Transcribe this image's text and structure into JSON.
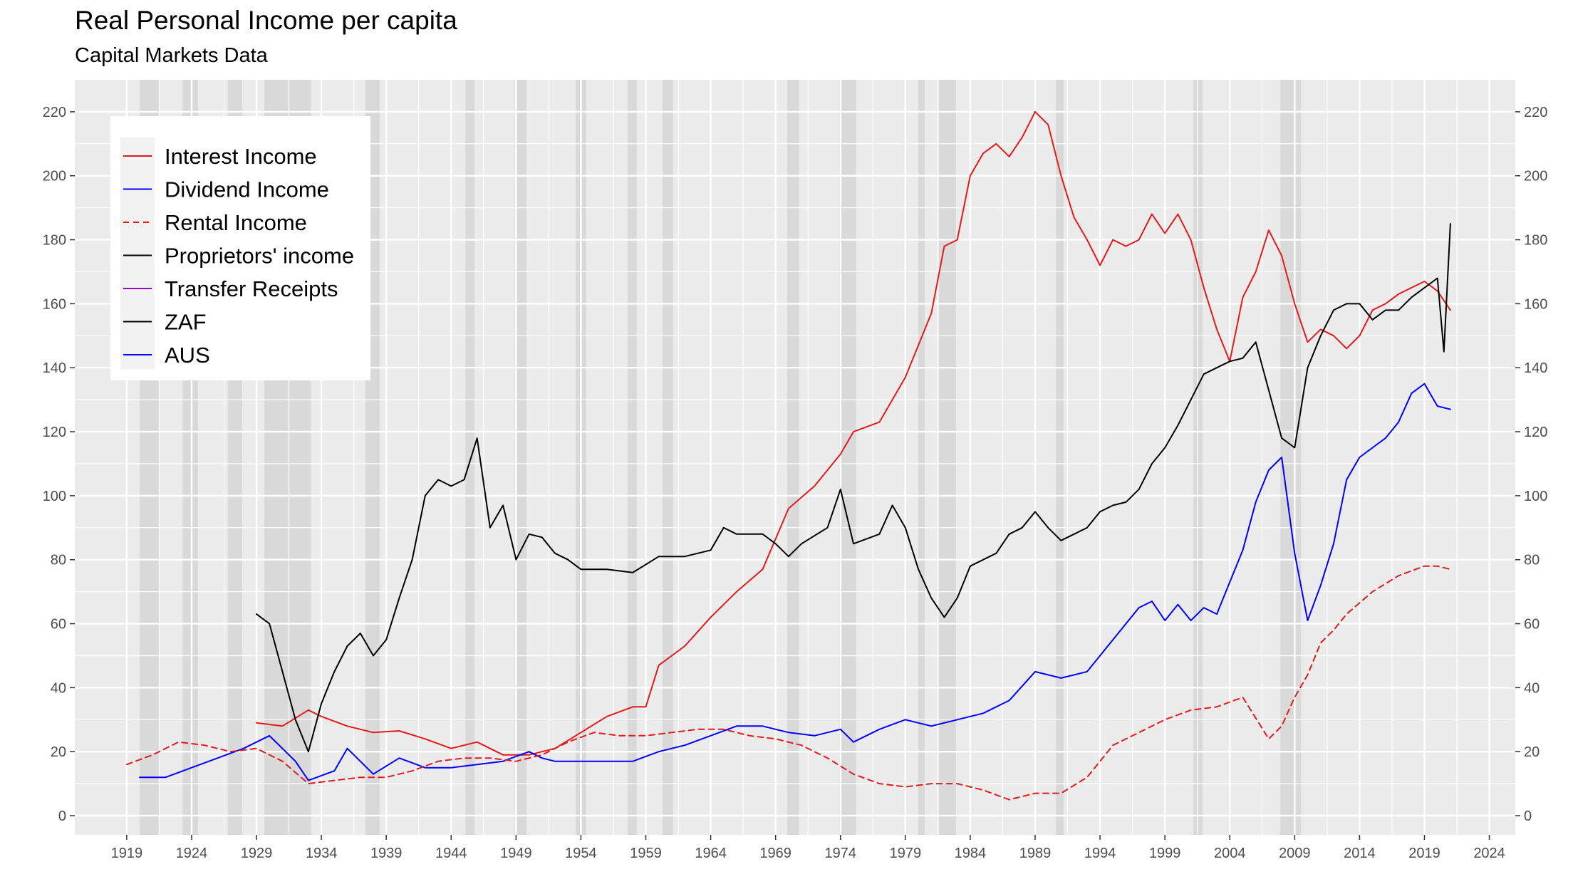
{
  "header": {
    "title": "Real Personal Income per capita",
    "subtitle": "Capital Markets Data"
  },
  "colors": {
    "panel": "#ebebeb",
    "grid": "#ffffff",
    "recession": "#d9d9d9",
    "legend_key_bg": "#f2f2f2"
  },
  "chart_data": {
    "type": "line",
    "title": "Real Personal Income per capita",
    "subtitle": "Capital Markets Data",
    "xlabel": "",
    "ylabel": "",
    "xlim": [
      1915,
      2026
    ],
    "ylim": [
      -6,
      230
    ],
    "x_ticks": [
      "1919",
      "1924",
      "1929",
      "1934",
      "1939",
      "1944",
      "1949",
      "1954",
      "1959",
      "1964",
      "1969",
      "1974",
      "1979",
      "1984",
      "1989",
      "1994",
      "1999",
      "2004",
      "2009",
      "2014",
      "2019",
      "2024"
    ],
    "y_ticks": [
      "0",
      "20",
      "40",
      "60",
      "80",
      "100",
      "120",
      "140",
      "160",
      "180",
      "200",
      "220"
    ],
    "grid": true,
    "legend_position": "top-left",
    "recession_bands": [
      [
        1920.0,
        1921.5
      ],
      [
        1923.3,
        1924.5
      ],
      [
        1926.8,
        1927.9
      ],
      [
        1929.6,
        1933.2
      ],
      [
        1937.4,
        1938.5
      ],
      [
        1945.1,
        1945.8
      ],
      [
        1948.9,
        1949.8
      ],
      [
        1953.6,
        1954.4
      ],
      [
        1957.6,
        1958.3
      ],
      [
        1960.3,
        1961.1
      ],
      [
        1969.9,
        1970.8
      ],
      [
        1973.9,
        1975.2
      ],
      [
        1980.0,
        1980.5
      ],
      [
        1981.6,
        1982.9
      ],
      [
        1990.6,
        1991.2
      ],
      [
        2001.2,
        2001.9
      ],
      [
        2007.9,
        2009.5
      ]
    ],
    "series": [
      {
        "name": "Interest Income",
        "color": "#e31a1c",
        "dash": "solid",
        "x": [
          1929,
          1931,
          1933,
          1934,
          1936,
          1938,
          1940,
          1942,
          1944,
          1946,
          1948,
          1950,
          1952,
          1954,
          1956,
          1958,
          1959,
          1960,
          1962,
          1964,
          1966,
          1968,
          1970,
          1972,
          1974,
          1975,
          1977,
          1979,
          1981,
          1982,
          1983,
          1984,
          1985,
          1986,
          1987,
          1988,
          1989,
          1990,
          1991,
          1992,
          1993,
          1994,
          1995,
          1996,
          1997,
          1998,
          1999,
          2000,
          2001,
          2002,
          2003,
          2004,
          2005,
          2006,
          2007,
          2008,
          2009,
          2010,
          2011,
          2012,
          2013,
          2014,
          2015,
          2016,
          2017,
          2018,
          2019,
          2020,
          2021
        ],
        "y": [
          29,
          28,
          33,
          31,
          28,
          26,
          26.5,
          24,
          21,
          23,
          19,
          19,
          21,
          26,
          31,
          34,
          34,
          47,
          53,
          62,
          70,
          77,
          96,
          103,
          113,
          120,
          123,
          137,
          157,
          178,
          180,
          200,
          207,
          210,
          206,
          212,
          220,
          216,
          200,
          187,
          180,
          172,
          180,
          178,
          180,
          188,
          182,
          188,
          180,
          165,
          152,
          142,
          162,
          170,
          183,
          175,
          160,
          148,
          152,
          150,
          146,
          150,
          158,
          160,
          163,
          165,
          167,
          164,
          158
        ]
      },
      {
        "name": "Dividend Income",
        "color": "#0000ff",
        "dash": "solid",
        "x": [
          1920,
          1922,
          1924,
          1926,
          1928,
          1930,
          1932,
          1933,
          1935,
          1936,
          1937,
          1938,
          1940,
          1942,
          1944,
          1946,
          1948,
          1950,
          1951,
          1952,
          1954,
          1956,
          1958,
          1960,
          1962,
          1964,
          1966,
          1968,
          1970,
          1972,
          1974,
          1975,
          1977,
          1979,
          1981,
          1983,
          1985,
          1987,
          1989,
          1991,
          1993,
          1995,
          1997,
          1998,
          1999,
          2000,
          2001,
          2002,
          2003,
          2004,
          2005,
          2006,
          2007,
          2008,
          2009,
          2010,
          2011,
          2012,
          2013,
          2014,
          2015,
          2016,
          2017,
          2018,
          2019,
          2020,
          2021
        ],
        "y": [
          12,
          12,
          15,
          18,
          21,
          25,
          17,
          11,
          14,
          21,
          17,
          13,
          18,
          15,
          15,
          16,
          17,
          20,
          18,
          17,
          17,
          17,
          17,
          20,
          22,
          25,
          28,
          28,
          26,
          25,
          27,
          23,
          27,
          30,
          28,
          30,
          32,
          36,
          45,
          43,
          45,
          55,
          65,
          67,
          61,
          66,
          61,
          65,
          63,
          73,
          83,
          98,
          108,
          112,
          82,
          61,
          72,
          85,
          105,
          112,
          115,
          118,
          123,
          132,
          135,
          128,
          127
        ]
      },
      {
        "name": "Rental Income",
        "color": "#e31a1c",
        "dash": "dashed",
        "x": [
          1919,
          1921,
          1923,
          1925,
          1927,
          1929,
          1931,
          1933,
          1935,
          1937,
          1939,
          1941,
          1943,
          1945,
          1947,
          1949,
          1951,
          1953,
          1955,
          1957,
          1959,
          1961,
          1963,
          1965,
          1967,
          1969,
          1971,
          1973,
          1975,
          1977,
          1979,
          1981,
          1983,
          1985,
          1987,
          1989,
          1991,
          1993,
          1995,
          1997,
          1999,
          2001,
          2003,
          2005,
          2007,
          2008,
          2009,
          2010,
          2011,
          2012,
          2013,
          2015,
          2017,
          2019,
          2020,
          2021
        ],
        "y": [
          16,
          19,
          23,
          22,
          20,
          21,
          17,
          10,
          11,
          12,
          12,
          14,
          17,
          18,
          18,
          17,
          19,
          23,
          26,
          25,
          25,
          26,
          27,
          27,
          25,
          24,
          22,
          18,
          13,
          10,
          9,
          10,
          10,
          8,
          5,
          7,
          7,
          12,
          22,
          26,
          30,
          33,
          34,
          37,
          24,
          28,
          37,
          44,
          54,
          58,
          63,
          70,
          75,
          78,
          78,
          77
        ]
      },
      {
        "name": "Proprietors' income",
        "color": "#000000",
        "dash": "solid",
        "x": [
          1929,
          1930,
          1931,
          1932,
          1933,
          1934,
          1935,
          1936,
          1937,
          1938,
          1939,
          1940,
          1941,
          1942,
          1943,
          1944,
          1945,
          1946,
          1947,
          1948,
          1949,
          1950,
          1951,
          1952,
          1953,
          1954,
          1956,
          1958,
          1960,
          1962,
          1964,
          1965,
          1966,
          1968,
          1969,
          1970,
          1971,
          1973,
          1974,
          1975,
          1977,
          1978,
          1979,
          1980,
          1981,
          1982,
          1983,
          1984,
          1985,
          1986,
          1987,
          1988,
          1989,
          1990,
          1991,
          1992,
          1993,
          1994,
          1995,
          1996,
          1997,
          1998,
          1999,
          2000,
          2001,
          2002,
          2003,
          2004,
          2005,
          2006,
          2007,
          2008,
          2009,
          2010,
          2011,
          2012,
          2013,
          2014,
          2015,
          2016,
          2017,
          2018,
          2019,
          2020,
          2020.5,
          2021
        ],
        "y": [
          63,
          60,
          45,
          30,
          20,
          35,
          45,
          53,
          57,
          50,
          55,
          68,
          80,
          100,
          105,
          103,
          105,
          118,
          90,
          97,
          80,
          88,
          87,
          82,
          80,
          77,
          77,
          76,
          81,
          81,
          83,
          90,
          88,
          88,
          85,
          81,
          85,
          90,
          102,
          85,
          88,
          97,
          90,
          77,
          68,
          62,
          68,
          78,
          80,
          82,
          88,
          90,
          95,
          90,
          86,
          88,
          90,
          95,
          97,
          98,
          102,
          110,
          115,
          122,
          130,
          138,
          140,
          142,
          143,
          148,
          133,
          118,
          115,
          140,
          150,
          158,
          160,
          160,
          155,
          158,
          158,
          162,
          165,
          168,
          145,
          185
        ]
      },
      {
        "name": "Transfer Receipts",
        "color": "#9900cc",
        "dash": "solid",
        "x": [],
        "y": []
      },
      {
        "name": "ZAF",
        "color": "#000000",
        "dash": "solid",
        "x": [],
        "y": []
      },
      {
        "name": "AUS",
        "color": "#0000ff",
        "dash": "solid",
        "x": [],
        "y": []
      }
    ]
  }
}
